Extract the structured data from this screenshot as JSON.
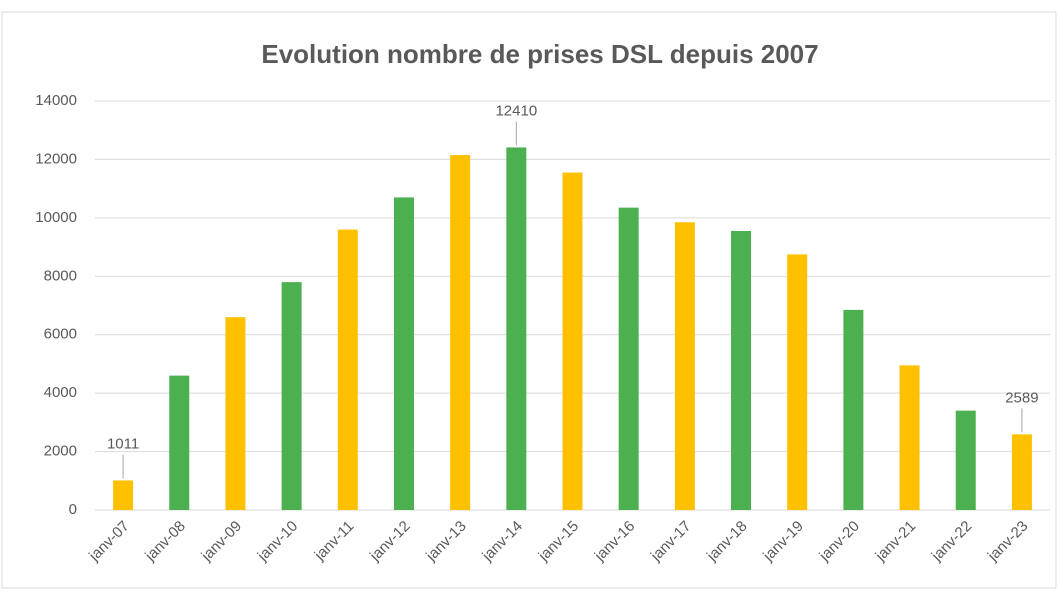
{
  "chart_data": {
    "type": "bar",
    "title": "Evolution nombre de prises DSL depuis 2007",
    "categories": [
      "janv-07",
      "janv-08",
      "janv-09",
      "janv-10",
      "janv-11",
      "janv-12",
      "janv-13",
      "janv-14",
      "janv-15",
      "janv-16",
      "janv-17",
      "janv-18",
      "janv-19",
      "janv-20",
      "janv-21",
      "janv-22",
      "janv-23"
    ],
    "values": [
      1011,
      4600,
      6600,
      7800,
      9600,
      10700,
      12150,
      12410,
      11550,
      10350,
      9850,
      9550,
      8750,
      6850,
      4950,
      3400,
      2589
    ],
    "value_labels": [
      "1011",
      null,
      null,
      null,
      null,
      null,
      null,
      "12410",
      null,
      null,
      null,
      null,
      null,
      null,
      null,
      null,
      "2589"
    ],
    "colors": [
      "#ffc000",
      "#4caf50",
      "#ffc000",
      "#4caf50",
      "#ffc000",
      "#4caf50",
      "#ffc000",
      "#4caf50",
      "#ffc000",
      "#4caf50",
      "#ffc000",
      "#4caf50",
      "#ffc000",
      "#4caf50",
      "#ffc000",
      "#4caf50",
      "#ffc000"
    ],
    "ylim": [
      0,
      14000
    ],
    "yticks": [
      0,
      2000,
      4000,
      6000,
      8000,
      10000,
      12000,
      14000
    ],
    "grid": true
  }
}
